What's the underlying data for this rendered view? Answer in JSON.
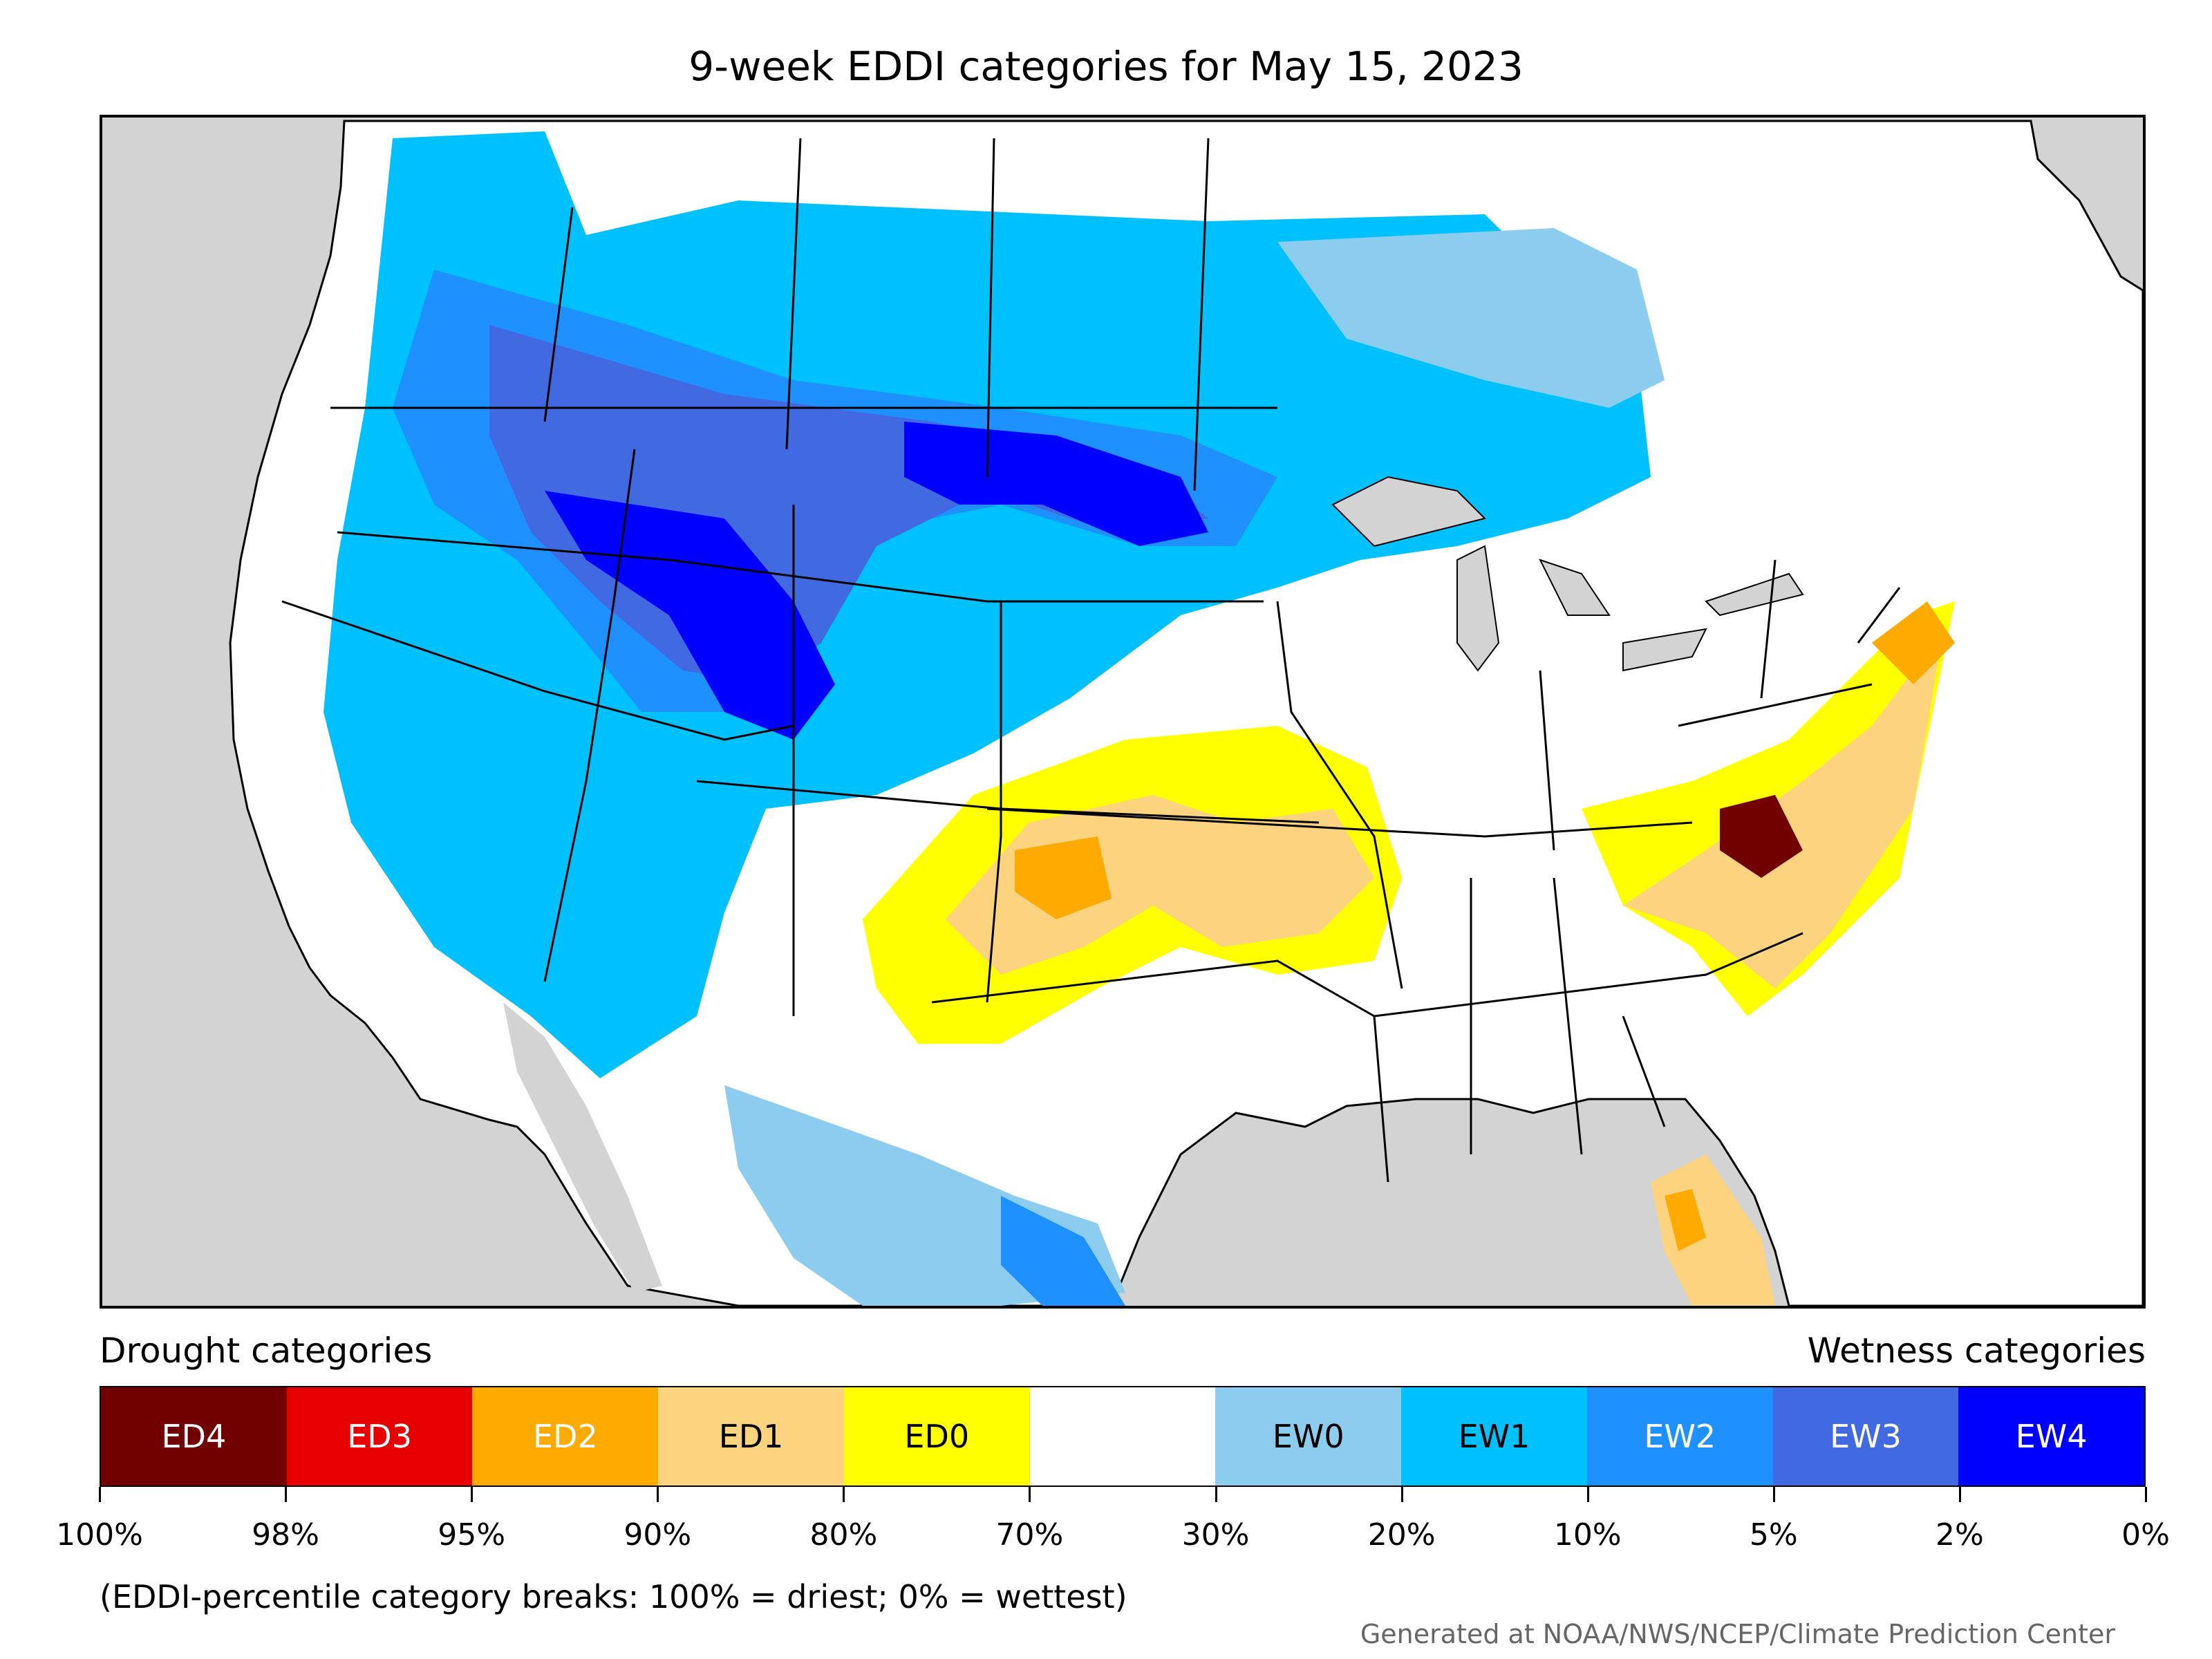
{
  "title": "9-week EDDI categories for May 15, 2023",
  "legend": {
    "left_label": "Drought categories",
    "right_label": "Wetness categories",
    "categories": [
      {
        "label": "ED4",
        "color": "#730000",
        "text": "#ffffff"
      },
      {
        "label": "ED3",
        "color": "#e60000",
        "text": "#ffffff"
      },
      {
        "label": "ED2",
        "color": "#ffaa00",
        "text": "#ffffff"
      },
      {
        "label": "ED1",
        "color": "#fcd37f",
        "text": "#000000"
      },
      {
        "label": "ED0",
        "color": "#ffff00",
        "text": "#000000"
      },
      {
        "label": "",
        "color": "#ffffff",
        "text": "#000000"
      },
      {
        "label": "EW0",
        "color": "#8ccdef",
        "text": "#000000"
      },
      {
        "label": "EW1",
        "color": "#00c1ff",
        "text": "#000000"
      },
      {
        "label": "EW2",
        "color": "#1e90ff",
        "text": "#ffffff"
      },
      {
        "label": "EW3",
        "color": "#4169e1",
        "text": "#ffffff"
      },
      {
        "label": "EW4",
        "color": "#0000ff",
        "text": "#ffffff"
      }
    ],
    "breaks": [
      "100%",
      "98%",
      "95%",
      "90%",
      "80%",
      "70%",
      "30%",
      "20%",
      "10%",
      "5%",
      "2%",
      "0%"
    ]
  },
  "note": "(EDDI-percentile category breaks: 100% = driest; 0% = wettest)",
  "credit": "Generated at NOAA/NWS/NCEP/Climate Prediction Center",
  "map": {
    "ocean_color": "#d3d3d3",
    "land_color": "#ffffff",
    "border_color": "#000000"
  }
}
